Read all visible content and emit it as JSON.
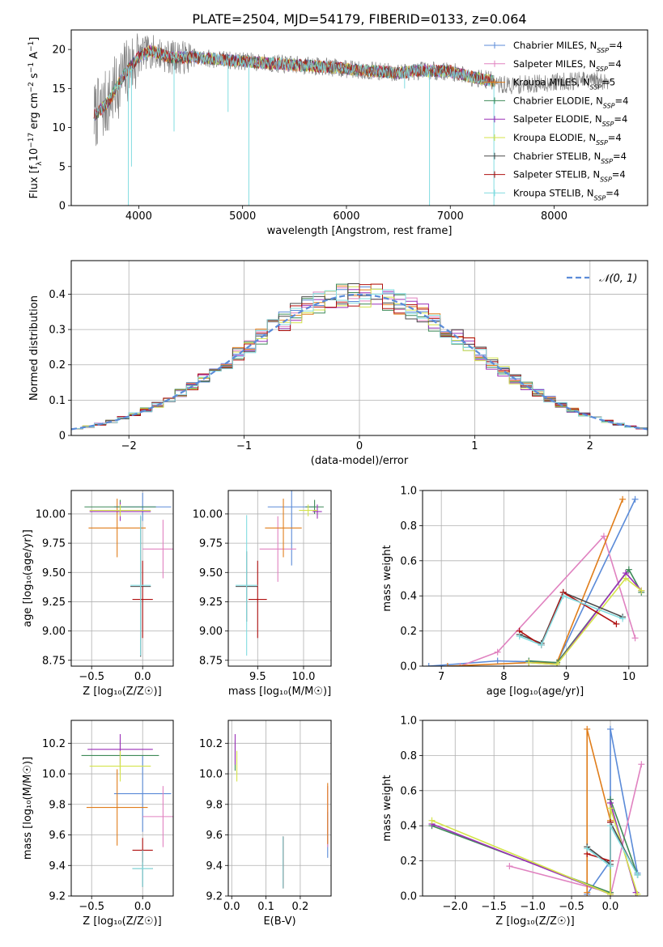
{
  "figure_title": "PLATE=2504, MJD=54179, FIBERID=0133, z=0.064",
  "colors": {
    "Chabrier MILES": "#5b8bd8",
    "Salpeter MILES": "#e082c0",
    "Kroupa MILES": "#e07d1a",
    "Chabrier ELODIE": "#3e8a58",
    "Salpeter ELODIE": "#9b30b8",
    "Kroupa ELODIE": "#d4e34a",
    "Chabrier STELIB": "#4a4a4a",
    "Salpeter STELIB": "#b01010",
    "Kroupa STELIB": "#82dce0",
    "data": "#808080",
    "normal": "#5b8bd8"
  },
  "chart_data": [
    {
      "id": "spectrum",
      "type": "line",
      "title": "PLATE=2504, MJD=54179, FIBERID=0133, z=0.064",
      "xlabel": "wavelength [Angstrom, rest frame]",
      "ylabel_parts": [
        "Flux [f",
        "λ",
        "10",
        "−17",
        " erg cm",
        "−2",
        " s",
        "−1",
        " A",
        "−1",
        "]"
      ],
      "xlim": [
        3350,
        8900
      ],
      "ylim": [
        0,
        22.5
      ],
      "xticks": [
        4000,
        5000,
        6000,
        7000,
        8000
      ],
      "yticks": [
        0,
        5,
        10,
        15,
        20
      ],
      "legend_position": "upper right",
      "legend": [
        {
          "model": "Chabrier MILES",
          "n": "4"
        },
        {
          "model": "Salpeter MILES",
          "n": "4"
        },
        {
          "model": "Kroupa MILES",
          "n": "5"
        },
        {
          "model": "Chabrier ELODIE",
          "n": "4"
        },
        {
          "model": "Salpeter ELODIE",
          "n": "4"
        },
        {
          "model": "Kroupa ELODIE",
          "n": "4"
        },
        {
          "model": "Chabrier STELIB",
          "n": "4"
        },
        {
          "model": "Salpeter STELIB",
          "n": "4"
        },
        {
          "model": "Kroupa STELIB",
          "n": "4"
        }
      ],
      "continuum_x": [
        3570,
        3650,
        3720,
        3800,
        3900,
        4000,
        4100,
        4200,
        4300,
        4500,
        4700,
        5000,
        5200,
        5500,
        5800,
        6000,
        6200,
        6500,
        6700,
        7000,
        7200,
        7400,
        7420
      ],
      "continuum_y": [
        11.5,
        12.5,
        13.5,
        15.5,
        17.5,
        19.0,
        19.8,
        19.5,
        19.0,
        19.0,
        18.8,
        18.5,
        18.3,
        18.0,
        17.8,
        17.5,
        17.3,
        17.0,
        17.3,
        17.2,
        16.5,
        16.0,
        15.8
      ],
      "model_end_x": 7420,
      "data_end_x": 8540,
      "tail_x": [
        7420,
        7600,
        7800,
        8000,
        8200,
        8400,
        8540
      ],
      "tail_y": [
        15.5,
        15.4,
        15.6,
        15.8,
        16.0,
        16.0,
        16.0
      ],
      "spikes": [
        {
          "x": 3900,
          "y": 0.0
        },
        {
          "x": 5060,
          "y": 0.0
        },
        {
          "x": 6800,
          "y": 0.0
        },
        {
          "x": 7420,
          "y": 0.0
        },
        {
          "x": 3930,
          "y": 5.0
        },
        {
          "x": 4340,
          "y": 9.5
        },
        {
          "x": 4860,
          "y": 12.0
        },
        {
          "x": 6560,
          "y": 15.0
        }
      ]
    },
    {
      "id": "residuals",
      "type": "step",
      "xlabel": "(data-model)/error",
      "ylabel": "Normed distribution",
      "xlim": [
        -2.5,
        2.5
      ],
      "ylim": [
        0,
        0.495
      ],
      "xticks": [
        -2,
        -1,
        0,
        1,
        2
      ],
      "xticklabels": [
        "−2",
        "−1",
        "0",
        "1",
        "2"
      ],
      "yticks": [
        0.0,
        0.1,
        0.2,
        0.3,
        0.4
      ],
      "grid": true,
      "bin_width": 0.1,
      "legend": "𝒩(0, 1)",
      "legend_position": "upper right",
      "normal_curve": {
        "mean": 0,
        "sigma": 1
      }
    },
    {
      "id": "age_vs_Z",
      "type": "errorbar",
      "xlabel": "Z [log₁₀(Z/Z☉)]",
      "ylabel": "age  [log₁₀(age/yr)]",
      "xlim": [
        -0.7,
        0.3
      ],
      "ylim": [
        8.7,
        10.2
      ],
      "xticks": [
        -0.5,
        0.0
      ],
      "xticklabels": [
        "−0.5",
        "0.0"
      ],
      "yticks": [
        8.75,
        9.0,
        9.25,
        9.5,
        9.75,
        10.0
      ],
      "yticklabels": [
        "8.75",
        "9.00",
        "9.25",
        "9.50",
        "9.75",
        "10.00"
      ],
      "grid": true,
      "points": [
        {
          "model": "Chabrier MILES",
          "x": 0.0,
          "xerr": 0.28,
          "y": 10.06,
          "yerr": 0.12
        },
        {
          "model": "Salpeter MILES",
          "x": 0.2,
          "xerr": 0.2,
          "y": 9.7,
          "yerr": 0.25
        },
        {
          "model": "Kroupa MILES",
          "x": -0.25,
          "xerr": 0.28,
          "y": 9.88,
          "yerr": 0.25
        },
        {
          "model": "Chabrier ELODIE",
          "x": -0.22,
          "xerr": 0.35,
          "y": 10.06,
          "yerr": 0.06
        },
        {
          "model": "Salpeter ELODIE",
          "x": -0.22,
          "xerr": 0.3,
          "y": 10.02,
          "yerr": 0.08
        },
        {
          "model": "Kroupa ELODIE",
          "x": -0.22,
          "xerr": 0.3,
          "y": 10.03,
          "yerr": 0.05
        },
        {
          "model": "Chabrier STELIB",
          "x": -0.02,
          "xerr": 0.1,
          "y": 9.38,
          "yerr": 0.6
        },
        {
          "model": "Salpeter STELIB",
          "x": 0.0,
          "xerr": 0.1,
          "y": 9.27,
          "yerr": 0.33
        },
        {
          "model": "Kroupa STELIB",
          "x": -0.02,
          "xerr": 0.1,
          "y": 9.39,
          "yerr": 0.6
        }
      ]
    },
    {
      "id": "age_vs_mass",
      "type": "errorbar",
      "xlabel": "mass [log₁₀(M/M☉)]",
      "ylabel": "",
      "xlim": [
        9.18,
        10.3
      ],
      "ylim": [
        8.7,
        10.2
      ],
      "xticks": [
        9.5,
        10.0
      ],
      "xticklabels": [
        "9.5",
        "10.0"
      ],
      "yticks": [
        8.75,
        9.0,
        9.25,
        9.5,
        9.75,
        10.0
      ],
      "yticklabels": [
        "8.75",
        "9.00",
        "9.25",
        "9.50",
        "9.75",
        "10.00"
      ],
      "grid": true,
      "points": [
        {
          "model": "Chabrier MILES",
          "x": 9.87,
          "xerr": 0.26,
          "y": 10.06,
          "yerr": 0.5
        },
        {
          "model": "Salpeter MILES",
          "x": 9.72,
          "xerr": 0.2,
          "y": 9.7,
          "yerr": 0.28
        },
        {
          "model": "Kroupa MILES",
          "x": 9.78,
          "xerr": 0.2,
          "y": 9.88,
          "yerr": 0.25
        },
        {
          "model": "Chabrier ELODIE",
          "x": 10.12,
          "xerr": 0.1,
          "y": 10.06,
          "yerr": 0.06
        },
        {
          "model": "Salpeter ELODIE",
          "x": 10.15,
          "xerr": 0.05,
          "y": 10.02,
          "yerr": 0.06
        },
        {
          "model": "Kroupa ELODIE",
          "x": 10.05,
          "xerr": 0.1,
          "y": 10.03,
          "yerr": 0.05
        },
        {
          "model": "Chabrier STELIB",
          "x": 9.38,
          "xerr": 0.12,
          "y": 9.38,
          "yerr": 0.3
        },
        {
          "model": "Salpeter STELIB",
          "x": 9.5,
          "xerr": 0.1,
          "y": 9.27,
          "yerr": 0.33
        },
        {
          "model": "Kroupa STELIB",
          "x": 9.38,
          "xerr": 0.12,
          "y": 9.39,
          "yerr": 0.6
        }
      ]
    },
    {
      "id": "weight_vs_age",
      "type": "line",
      "xlabel": "age  [log₁₀(age/yr)]",
      "ylabel": "mass weight",
      "xlim": [
        6.7,
        10.3
      ],
      "ylim": [
        0.0,
        1.0
      ],
      "xticks": [
        7,
        8,
        9,
        10
      ],
      "yticks": [
        0.0,
        0.2,
        0.4,
        0.6,
        0.8,
        1.0
      ],
      "yticklabels": [
        "0.0",
        "0.2",
        "0.4",
        "0.6",
        "0.8",
        "1.0"
      ],
      "grid": true,
      "series": [
        {
          "model": "Chabrier MILES",
          "x": [
            6.8,
            7.9,
            8.85,
            10.1
          ],
          "y": [
            0.0,
            0.03,
            0.02,
            0.95
          ]
        },
        {
          "model": "Salpeter MILES",
          "x": [
            7.3,
            7.9,
            9.6,
            10.1
          ],
          "y": [
            0.0,
            0.08,
            0.74,
            0.16
          ]
        },
        {
          "model": "Kroupa MILES",
          "x": [
            7.1,
            8.4,
            8.85,
            9.9
          ],
          "y": [
            0.0,
            0.02,
            0.02,
            0.95
          ]
        },
        {
          "model": "Chabrier ELODIE",
          "x": [
            8.4,
            8.85,
            10.0,
            10.2
          ],
          "y": [
            0.03,
            0.02,
            0.55,
            0.42
          ]
        },
        {
          "model": "Salpeter ELODIE",
          "x": [
            8.4,
            8.85,
            9.95,
            10.2
          ],
          "y": [
            0.02,
            0.01,
            0.53,
            0.43
          ]
        },
        {
          "model": "Kroupa ELODIE",
          "x": [
            8.4,
            8.85,
            9.95,
            10.2
          ],
          "y": [
            0.02,
            0.01,
            0.5,
            0.43
          ]
        },
        {
          "model": "Chabrier STELIB",
          "x": [
            8.25,
            8.6,
            8.95,
            9.9
          ],
          "y": [
            0.18,
            0.13,
            0.42,
            0.28
          ]
        },
        {
          "model": "Salpeter STELIB",
          "x": [
            8.25,
            8.6,
            8.95,
            9.8
          ],
          "y": [
            0.2,
            0.12,
            0.42,
            0.24
          ]
        },
        {
          "model": "Kroupa STELIB",
          "x": [
            8.25,
            8.6,
            8.95,
            9.9
          ],
          "y": [
            0.17,
            0.12,
            0.4,
            0.27
          ]
        }
      ]
    },
    {
      "id": "mass_vs_Z",
      "type": "errorbar",
      "xlabel": "Z [log₁₀(Z/Z☉)]",
      "ylabel": "mass [log₁₀(M/M☉)]",
      "xlim": [
        -0.7,
        0.3
      ],
      "ylim": [
        9.2,
        10.35
      ],
      "xticks": [
        -0.5,
        0.0
      ],
      "xticklabels": [
        "−0.5",
        "0.0"
      ],
      "yticks": [
        9.2,
        9.4,
        9.6,
        9.8,
        10.0,
        10.2
      ],
      "yticklabels": [
        "9.2",
        "9.4",
        "9.6",
        "9.8",
        "10.0",
        "10.2"
      ],
      "grid": true,
      "points": [
        {
          "model": "Chabrier MILES",
          "x": 0.0,
          "xerr": 0.28,
          "y": 9.87,
          "yerr": 0.25
        },
        {
          "model": "Salpeter MILES",
          "x": 0.2,
          "xerr": 0.2,
          "y": 9.72,
          "yerr": 0.2
        },
        {
          "model": "Kroupa MILES",
          "x": -0.25,
          "xerr": 0.3,
          "y": 9.78,
          "yerr": 0.25
        },
        {
          "model": "Chabrier ELODIE",
          "x": -0.22,
          "xerr": 0.38,
          "y": 10.12,
          "yerr": 0.1
        },
        {
          "model": "Salpeter ELODIE",
          "x": -0.22,
          "xerr": 0.32,
          "y": 10.16,
          "yerr": 0.1
        },
        {
          "model": "Kroupa ELODIE",
          "x": -0.22,
          "xerr": 0.3,
          "y": 10.05,
          "yerr": 0.1
        },
        {
          "model": "Chabrier STELIB",
          "x": 0.0,
          "xerr": 0.1,
          "y": 9.38,
          "yerr": 0.12
        },
        {
          "model": "Salpeter STELIB",
          "x": 0.0,
          "xerr": 0.1,
          "y": 9.5,
          "yerr": 0.08
        },
        {
          "model": "Kroupa STELIB",
          "x": 0.0,
          "xerr": 0.1,
          "y": 9.38,
          "yerr": 0.12
        }
      ]
    },
    {
      "id": "mass_vs_ebv",
      "type": "errorbar",
      "xlabel": "E(B-V)",
      "ylabel": "",
      "xlim": [
        -0.01,
        0.29
      ],
      "ylim": [
        9.2,
        10.35
      ],
      "xticks": [
        0.0,
        0.1,
        0.2
      ],
      "xticklabels": [
        "0.0",
        "0.1",
        "0.2"
      ],
      "yticks": [
        9.2,
        9.4,
        9.6,
        9.8,
        10.0,
        10.2
      ],
      "yticklabels": [
        "9.2",
        "9.4",
        "9.6",
        "9.8",
        "10.0",
        "10.2"
      ],
      "grid": true,
      "points": [
        {
          "model": "Chabrier MILES",
          "x": 0.28,
          "xerr": 0.0,
          "y": 9.6,
          "yerr": 0.15
        },
        {
          "model": "Salpeter MILES",
          "x": 0.28,
          "xerr": 0.0,
          "y": 9.72,
          "yerr": 0.2
        },
        {
          "model": "Kroupa MILES",
          "x": 0.28,
          "xerr": 0.0,
          "y": 9.74,
          "yerr": 0.2
        },
        {
          "model": "Chabrier ELODIE",
          "x": 0.01,
          "xerr": 0.0,
          "y": 10.12,
          "yerr": 0.1
        },
        {
          "model": "Salpeter ELODIE",
          "x": 0.01,
          "xerr": 0.0,
          "y": 10.16,
          "yerr": 0.1
        },
        {
          "model": "Kroupa ELODIE",
          "x": 0.015,
          "xerr": 0.0,
          "y": 10.05,
          "yerr": 0.1
        },
        {
          "model": "Chabrier STELIB",
          "x": 0.15,
          "xerr": 0.0,
          "y": 9.42,
          "yerr": 0.17
        },
        {
          "model": "Salpeter STELIB",
          "x": 0.15,
          "xerr": 0.0,
          "y": 9.42,
          "yerr": 0.17
        },
        {
          "model": "Kroupa STELIB",
          "x": 0.15,
          "xerr": 0.0,
          "y": 9.42,
          "yerr": 0.17
        }
      ]
    },
    {
      "id": "weight_vs_Z",
      "type": "line",
      "xlabel": "Z [log₁₀(Z/Z☉)]",
      "ylabel": "mass weight",
      "xlim": [
        -2.42,
        0.48
      ],
      "ylim": [
        0.0,
        1.0
      ],
      "xticks": [
        -2.0,
        -1.5,
        -1.0,
        -0.5,
        0.0
      ],
      "xticklabels": [
        "−2.0",
        "−1.5",
        "−1.0",
        "−0.5",
        "0.0"
      ],
      "yticks": [
        0.0,
        0.2,
        0.4,
        0.6,
        0.8,
        1.0
      ],
      "yticklabels": [
        "0.0",
        "0.2",
        "0.4",
        "0.6",
        "0.8",
        "1.0"
      ],
      "grid": true,
      "series": [
        {
          "model": "Chabrier MILES",
          "x": [
            -0.3,
            0.0,
            0.0,
            0.35
          ],
          "y": [
            0.01,
            0.2,
            0.95,
            0.13
          ]
        },
        {
          "model": "Salpeter MILES",
          "x": [
            -1.3,
            0.0,
            0.0,
            0.4
          ],
          "y": [
            0.17,
            0.02,
            0.0,
            0.75
          ]
        },
        {
          "model": "Kroupa MILES",
          "x": [
            -0.3,
            -0.3,
            0.0,
            0.0
          ],
          "y": [
            0.02,
            0.95,
            0.43,
            0.01
          ]
        },
        {
          "model": "Chabrier ELODIE",
          "x": [
            -2.3,
            0.0,
            0.0,
            0.35
          ],
          "y": [
            0.4,
            0.02,
            0.55,
            0.12
          ]
        },
        {
          "model": "Salpeter ELODIE",
          "x": [
            -2.3,
            0.0,
            0.0,
            0.33
          ],
          "y": [
            0.41,
            0.01,
            0.53,
            0.02
          ]
        },
        {
          "model": "Kroupa ELODIE",
          "x": [
            -2.3,
            0.0,
            0.0,
            0.35
          ],
          "y": [
            0.43,
            0.01,
            0.5,
            0.01
          ]
        },
        {
          "model": "Chabrier STELIB",
          "x": [
            -0.3,
            0.0,
            0.0,
            0.35
          ],
          "y": [
            0.28,
            0.18,
            0.42,
            0.12
          ]
        },
        {
          "model": "Salpeter STELIB",
          "x": [
            -0.3,
            0.0,
            0.0
          ],
          "y": [
            0.24,
            0.2,
            0.42
          ]
        },
        {
          "model": "Kroupa STELIB",
          "x": [
            -0.3,
            0.0,
            0.0,
            0.35
          ],
          "y": [
            0.27,
            0.17,
            0.4,
            0.12
          ]
        }
      ]
    }
  ]
}
